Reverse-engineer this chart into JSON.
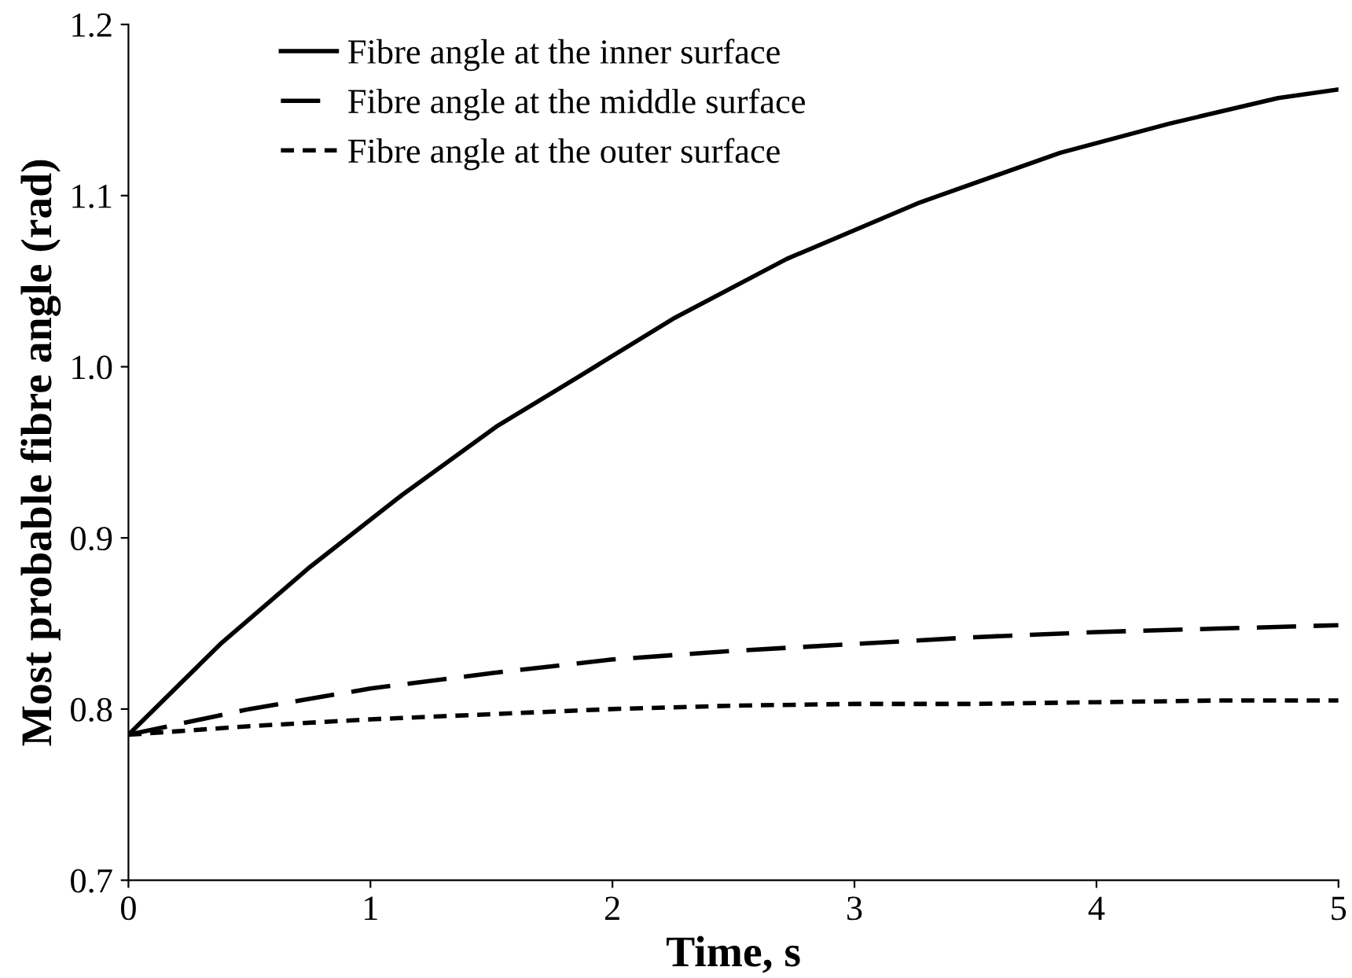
{
  "chart_data": {
    "type": "line",
    "xlabel": "Time, s",
    "ylabel": "Most probable fibre angle (rad)",
    "xlim": [
      0,
      5
    ],
    "xticks": [
      0,
      1,
      2,
      3,
      4,
      5
    ],
    "ylim": [
      0.7,
      1.2
    ],
    "yticks": [
      0.7,
      0.8,
      0.9,
      {
        "value": 1.0,
        "label": "1.0"
      },
      1.1,
      1.2
    ],
    "grid": false,
    "legend": "top left",
    "marker": "none",
    "series": [
      {
        "name": "Fibre angle at the inner surface",
        "color": "#000000",
        "line_style": "solid",
        "x": [
          0,
          0.38,
          0.75,
          1.13,
          1.52,
          1.87,
          2.25,
          2.72,
          3.27,
          3.85,
          4.3,
          4.75,
          5
        ],
        "values": [
          0.785,
          0.838,
          0.883,
          0.925,
          0.965,
          0.995,
          1.028,
          1.063,
          1.096,
          1.125,
          1.142,
          1.157,
          1.162
        ]
      },
      {
        "name": "Fibre angle at the middle surface",
        "color": "#000000",
        "line_style": "dashed",
        "x": [
          0,
          0.5,
          1,
          1.5,
          2,
          2.5,
          3,
          3.5,
          4,
          4.5,
          5
        ],
        "values": [
          0.785,
          0.8,
          0.812,
          0.821,
          0.829,
          0.834,
          0.838,
          0.842,
          0.845,
          0.847,
          0.849
        ]
      },
      {
        "name": "Fibre angle at the outer surface",
        "color": "#000000",
        "line_style": "dotted",
        "x": [
          0,
          0.5,
          1,
          1.5,
          2,
          2.5,
          3,
          3.5,
          4,
          4.5,
          5
        ],
        "values": [
          0.785,
          0.79,
          0.794,
          0.797,
          0.8,
          0.802,
          0.803,
          0.803,
          0.804,
          0.805,
          0.805
        ]
      }
    ]
  }
}
